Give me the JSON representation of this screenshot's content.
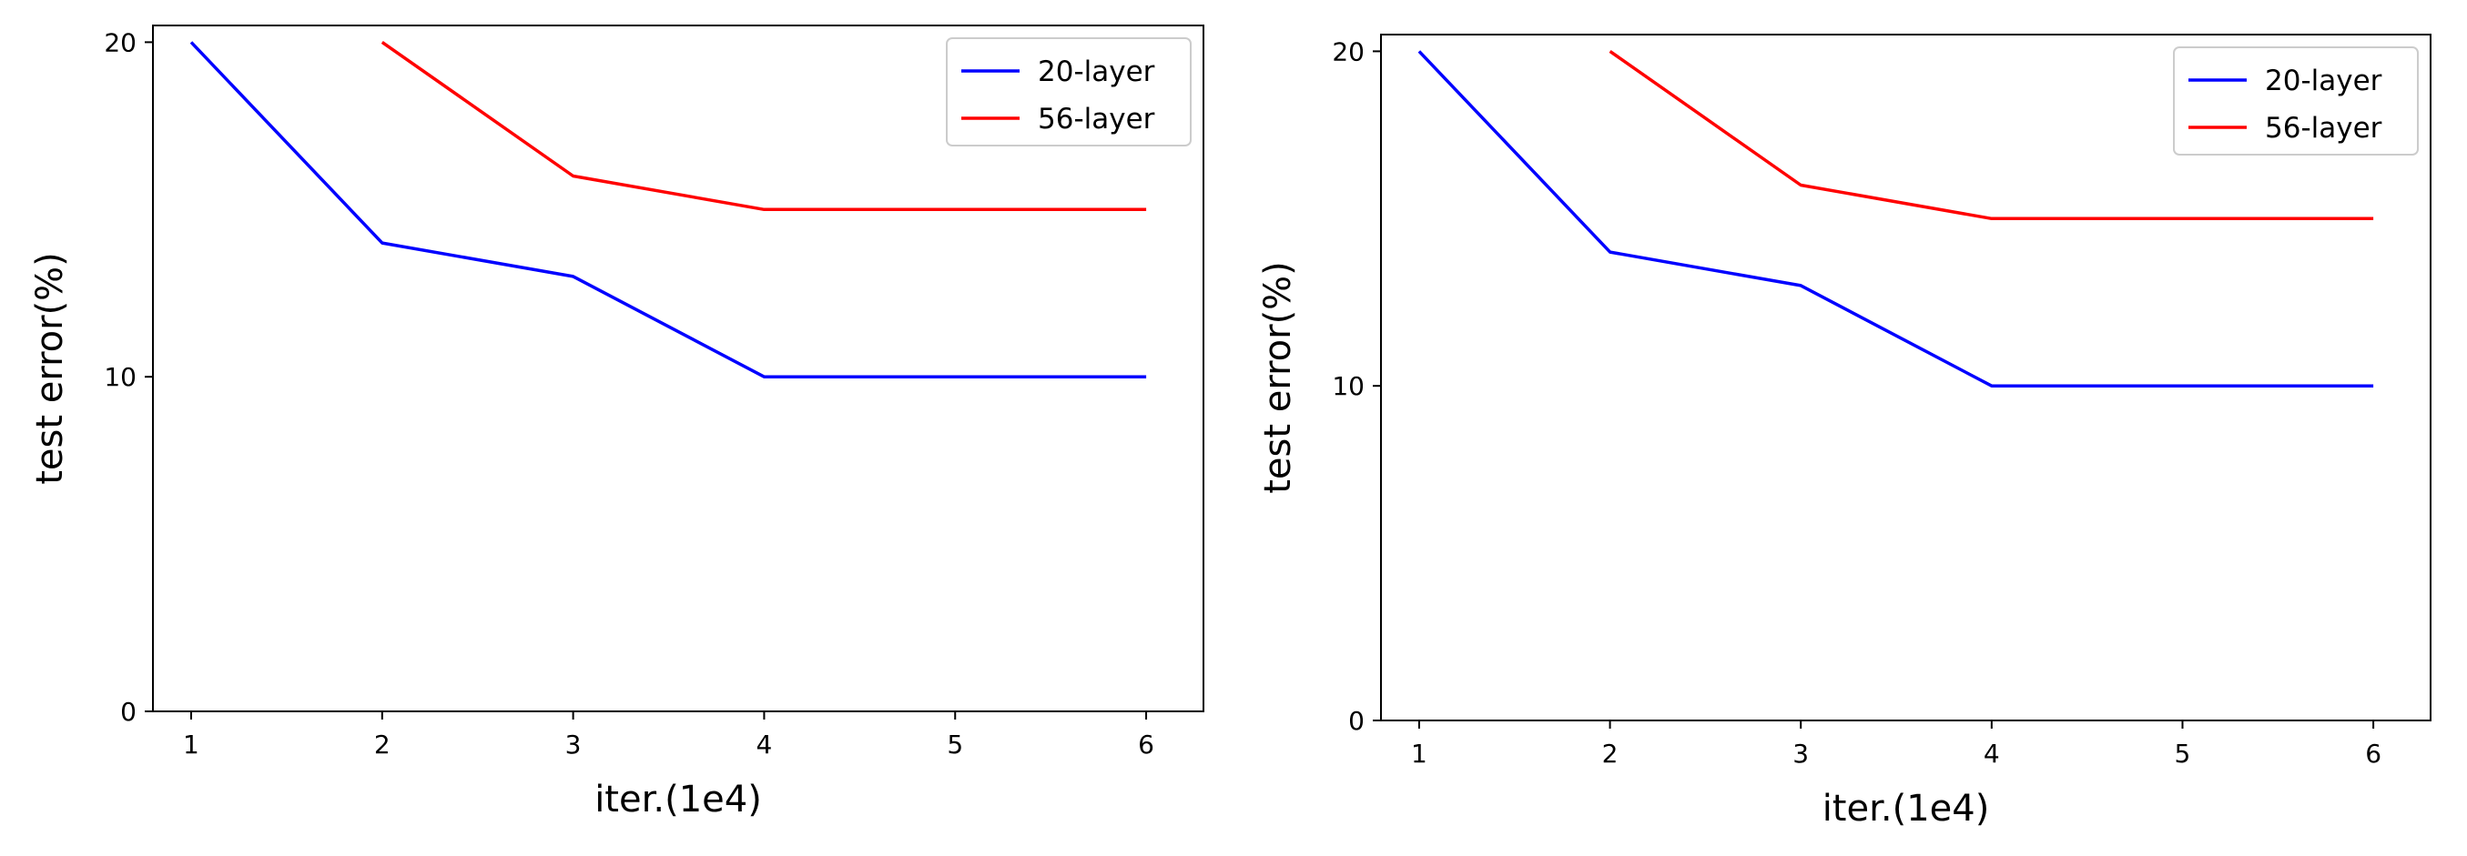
{
  "chart_data": [
    {
      "type": "line",
      "title": "",
      "xlabel": "iter.(1e4)",
      "ylabel": "test error(%)",
      "xlim": [
        0.8,
        6.3
      ],
      "ylim": [
        0,
        20.5
      ],
      "xticks": [
        "1",
        "2",
        "3",
        "4",
        "5",
        "6"
      ],
      "yticks": [
        "0",
        "10",
        "20"
      ],
      "grid": false,
      "legend_position": "top-right",
      "series": [
        {
          "name": "20-layer",
          "color": "#0000ff",
          "x": [
            1,
            2,
            3,
            4,
            5,
            6
          ],
          "y": [
            20,
            14,
            13,
            10,
            10,
            10
          ]
        },
        {
          "name": "56-layer",
          "color": "#ff0000",
          "x": [
            2,
            3,
            4,
            5,
            6
          ],
          "y": [
            20,
            16,
            15,
            15,
            15
          ]
        }
      ]
    },
    {
      "type": "line",
      "title": "",
      "xlabel": "iter.(1e4)",
      "ylabel": "test error(%)",
      "xlim": [
        0.8,
        6.3
      ],
      "ylim": [
        0,
        20.5
      ],
      "xticks": [
        "1",
        "2",
        "3",
        "4",
        "5",
        "6"
      ],
      "yticks": [
        "0",
        "10",
        "20"
      ],
      "grid": false,
      "legend_position": "top-right",
      "series": [
        {
          "name": "20-layer",
          "color": "#0000ff",
          "x": [
            1,
            2,
            3,
            4,
            5,
            6
          ],
          "y": [
            20,
            14,
            13,
            10,
            10,
            10
          ]
        },
        {
          "name": "56-layer",
          "color": "#ff0000",
          "x": [
            2,
            3,
            4,
            5,
            6
          ],
          "y": [
            20,
            16,
            15,
            15,
            15
          ]
        }
      ]
    }
  ]
}
